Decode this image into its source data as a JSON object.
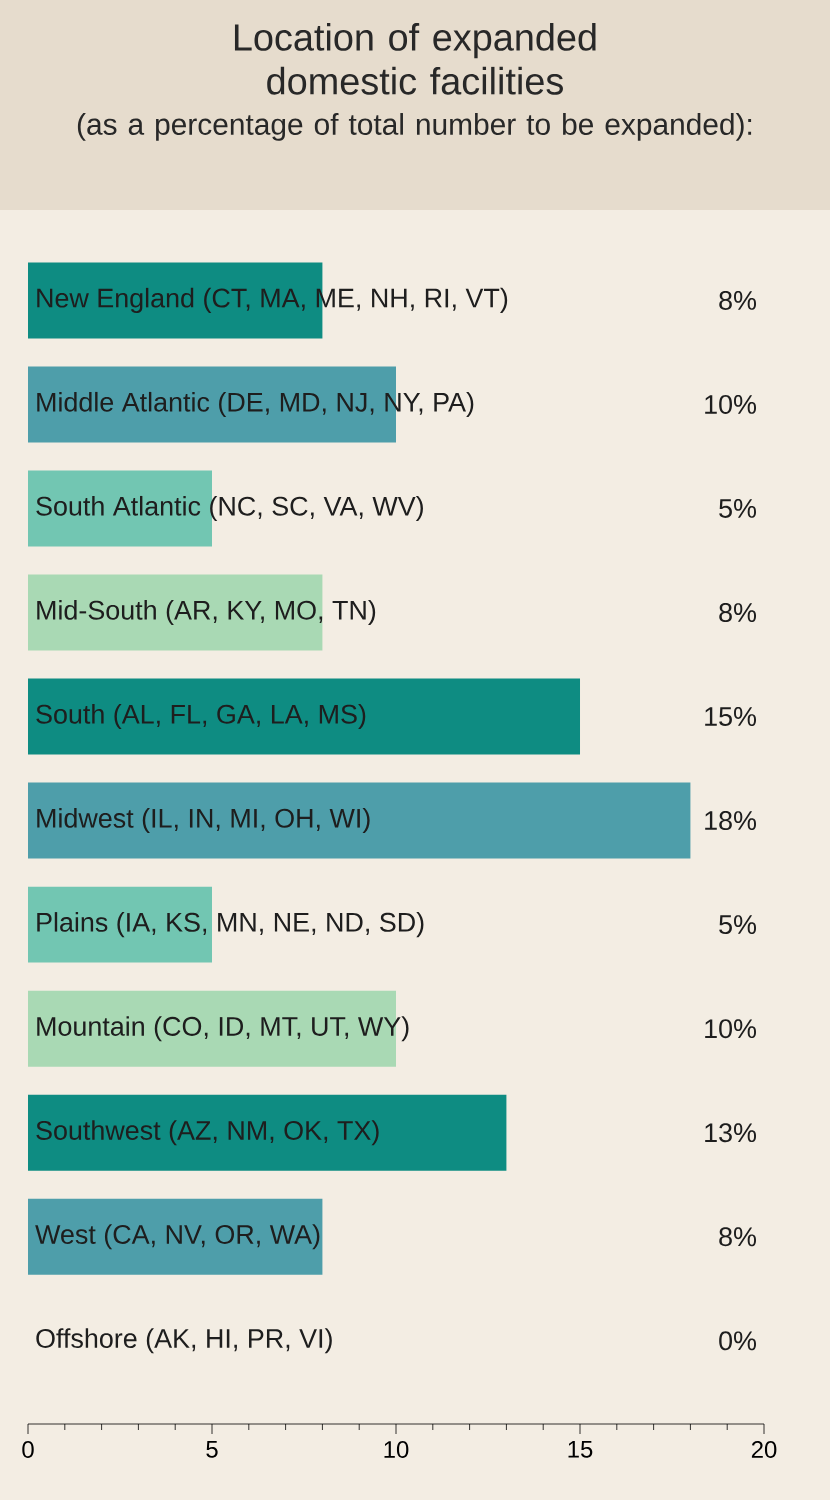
{
  "chart_data": {
    "type": "bar",
    "orientation": "horizontal",
    "title": "Location of expanded domestic facilities",
    "subtitle": "(as a percentage of total number to be expanded):",
    "categories": [
      "New England (CT, MA, ME, NH, RI, VT)",
      "Middle Atlantic (DE, MD, NJ, NY, PA)",
      "South Atlantic (NC, SC, VA, WV)",
      "Mid-South (AR, KY, MO, TN)",
      "South (AL, FL, GA, LA, MS)",
      "Midwest (IL, IN, MI, OH, WI)",
      "Plains (IA, KS, MN, NE, ND, SD)",
      "Mountain (CO, ID, MT, UT, WY)",
      "Southwest (AZ, NM, OK, TX)",
      "West (CA, NV, OR, WA)",
      "Offshore (AK, HI, PR, VI)"
    ],
    "values": [
      8,
      10,
      5,
      8,
      15,
      18,
      5,
      10,
      13,
      8,
      0
    ],
    "value_labels": [
      "8%",
      "10%",
      "5%",
      "8%",
      "15%",
      "18%",
      "5%",
      "10%",
      "13%",
      "8%",
      "0%"
    ],
    "colors": [
      "#0e8c82",
      "#4e9eaa",
      "#72c6b2",
      "#a9d9b4",
      "#0e8c82",
      "#4e9eaa",
      "#72c6b2",
      "#a9d9b4",
      "#0e8c82",
      "#4e9eaa",
      "#72c6b2"
    ],
    "xlim": [
      0,
      20
    ],
    "xticks": [
      0,
      5,
      10,
      15,
      20
    ]
  }
}
